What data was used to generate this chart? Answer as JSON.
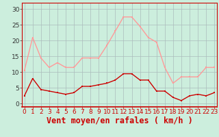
{
  "hours": [
    0,
    1,
    2,
    3,
    4,
    5,
    6,
    7,
    8,
    9,
    10,
    11,
    12,
    13,
    14,
    15,
    16,
    17,
    18,
    19,
    20,
    21,
    22,
    23
  ],
  "wind_avg": [
    2.5,
    8,
    4.5,
    4,
    3.5,
    3,
    3.5,
    5.5,
    5.5,
    6,
    6.5,
    7.5,
    9.5,
    9.5,
    7.5,
    7.5,
    4,
    4,
    2,
    1,
    2.5,
    3,
    2.5,
    3.5
  ],
  "wind_gust": [
    10.5,
    21,
    14.5,
    11.5,
    13,
    11.5,
    11.5,
    14.5,
    14.5,
    14.5,
    18.5,
    23,
    27.5,
    27.5,
    24.5,
    21,
    19.5,
    11.5,
    6.5,
    8.5,
    8.5,
    8.5,
    11.5,
    11.5
  ],
  "color_avg": "#cc0000",
  "color_gust": "#ff9999",
  "bg_color": "#cceedd",
  "grid_color": "#aabbbb",
  "xlabel": "Vent moyen/en rafales ( km/h )",
  "xlabel_color": "#cc0000",
  "ylabel_ticks": [
    0,
    5,
    10,
    15,
    20,
    25,
    30
  ],
  "xlim": [
    -0.3,
    23.3
  ],
  "ylim": [
    -1,
    32
  ],
  "tick_fontsize": 6.5,
  "xlabel_fontsize": 8.5
}
